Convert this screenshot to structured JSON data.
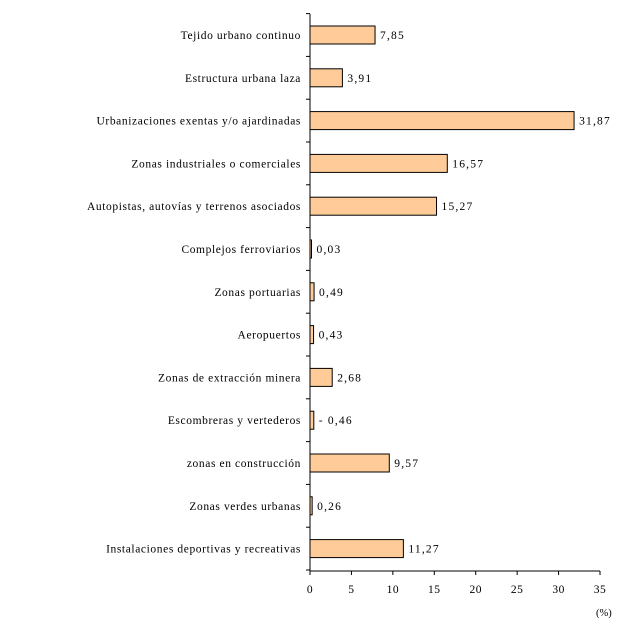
{
  "chart_data": {
    "type": "bar",
    "orientation": "horizontal",
    "categories": [
      "Tejido urbano continuo",
      "Estructura urbana laza",
      "Urbanizaciones exentas y/o ajardinadas",
      "Zonas industriales o comerciales",
      "Autopistas, autovías y terrenos asociados",
      "Complejos ferroviarios",
      "Zonas portuarias",
      "Aeropuertos",
      "Zonas de extracción minera",
      "Escombreras y vertederos",
      "zonas en construcción",
      "Zonas verdes urbanas",
      "Instalaciones deportivas y recreativas"
    ],
    "values": [
      7.85,
      3.91,
      31.87,
      16.57,
      15.27,
      0.03,
      0.49,
      0.43,
      2.68,
      -0.46,
      9.57,
      0.26,
      11.27
    ],
    "value_labels": [
      "7,85",
      "3,91",
      "31,87",
      "16,57",
      "15,27",
      "0,03",
      "0,49",
      "0,43",
      "2,68",
      "- 0,46",
      "9,57",
      "0,26",
      "11,27"
    ],
    "xlim": [
      0,
      35
    ],
    "xticks": [
      0,
      5,
      10,
      15,
      20,
      25,
      30,
      35
    ],
    "xunit": "(%)",
    "grid": false,
    "bar_color": "#ffcc99"
  }
}
